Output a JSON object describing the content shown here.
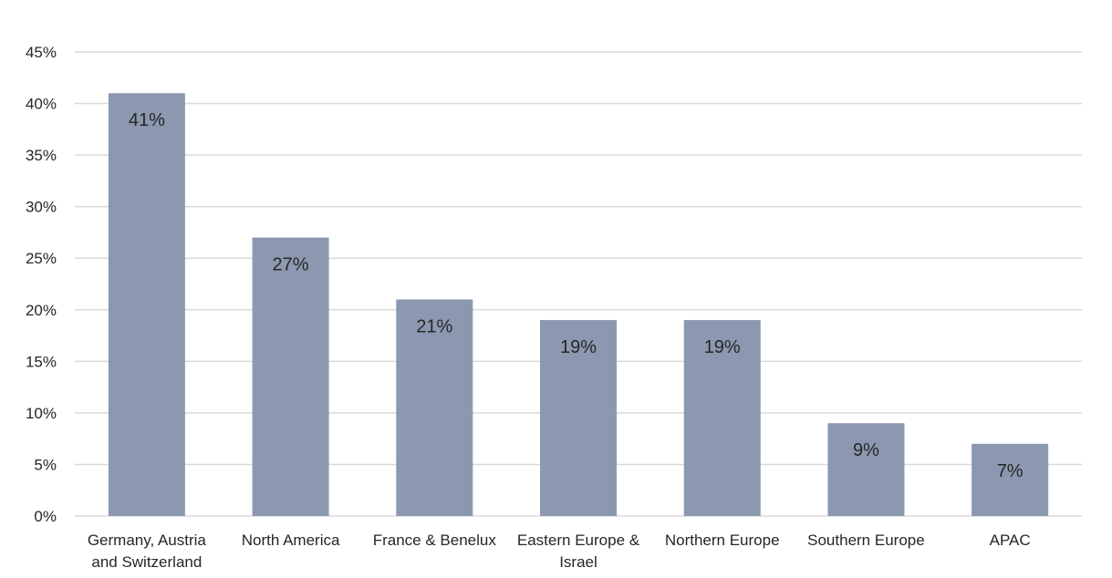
{
  "chart_data": {
    "type": "bar",
    "categories": [
      "Germany, Austria and Switzerland",
      "North America",
      "France & Benelux",
      "Eastern Europe & Israel",
      "Northern Europe",
      "Southern Europe",
      "APAC"
    ],
    "values": [
      41,
      27,
      21,
      19,
      19,
      9,
      7
    ],
    "value_labels": [
      "41%",
      "27%",
      "21%",
      "19%",
      "19%",
      "9%",
      "7%"
    ],
    "category_lines": [
      [
        "Germany, Austria",
        "and Switzerland"
      ],
      [
        "North America"
      ],
      [
        "France & Benelux"
      ],
      [
        "Eastern Europe &",
        "Israel"
      ],
      [
        "Northern Europe"
      ],
      [
        "Southern Europe"
      ],
      [
        "APAC"
      ]
    ],
    "y_ticks": [
      0,
      5,
      10,
      15,
      20,
      25,
      30,
      35,
      40,
      45
    ],
    "y_tick_labels": [
      "0%",
      "5%",
      "10%",
      "15%",
      "20%",
      "25%",
      "30%",
      "35%",
      "40%",
      "45%"
    ],
    "ylim": [
      0,
      45
    ],
    "grid": true,
    "legend": "none",
    "title": "",
    "xlabel": "",
    "ylabel": "",
    "colors": {
      "bar": "#8c98b0",
      "grid": "#d9d9d9",
      "text": "#262626"
    }
  }
}
